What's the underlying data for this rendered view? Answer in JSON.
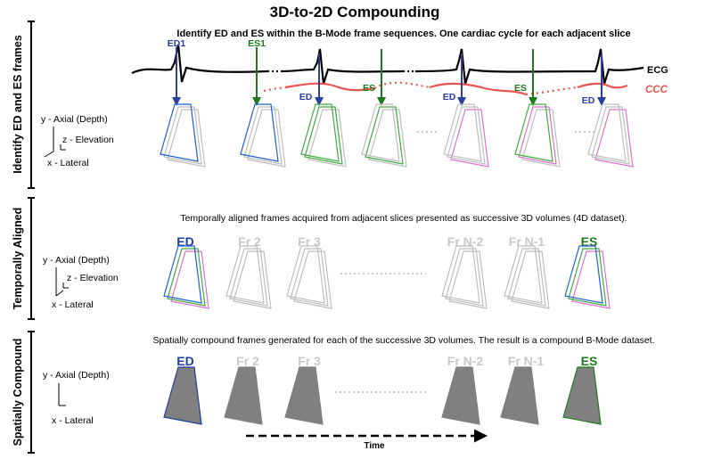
{
  "title": "3D-to-2D Compounding",
  "colors": {
    "ed": "#1f3f9e",
    "es": "#1e7a1e",
    "gray": "#bdbdbd",
    "ccc": "#e8544e",
    "pink": "#e26fc9",
    "fill": "#808080"
  },
  "sections": {
    "identify": {
      "side_label": "Identify ED and ES frames",
      "description": "Identify ED and ES within the B-Mode frame sequences. One cardiac cycle for each adjacent slice",
      "signal_labels": {
        "ecg": "ECG",
        "ccc": "CCC"
      },
      "markers": {
        "ed1": "ED1",
        "es1": "ES1",
        "ed": "ED",
        "es": "ES"
      },
      "axes": {
        "y": "y - Axial (Depth)",
        "z": "z - Elevation",
        "x": "x - Lateral"
      }
    },
    "aligned": {
      "side_label": "Temporally Aligned",
      "description": "Temporally aligned frames acquired from adjacent slices presented as successive 3D volumes (4D dataset).",
      "frames": [
        "ED",
        "Fr 2",
        "Fr 3",
        "Fr N-2",
        "Fr N-1",
        "ES"
      ],
      "axes": {
        "y": "y - Axial (Depth)",
        "z": "z - Elevation",
        "x": "x - Lateral"
      }
    },
    "compound": {
      "side_label": "Spatially Compound",
      "description": "Spatially compound frames generated for each of the successive 3D volumes. The result is a compound B-Mode dataset.",
      "frames": [
        "ED",
        "Fr 2",
        "Fr 3",
        "Fr N-2",
        "Fr N-1",
        "ES"
      ],
      "axes": {
        "y": "y - Axial (Depth)",
        "x": "x - Lateral"
      },
      "time_label": "Time"
    }
  }
}
